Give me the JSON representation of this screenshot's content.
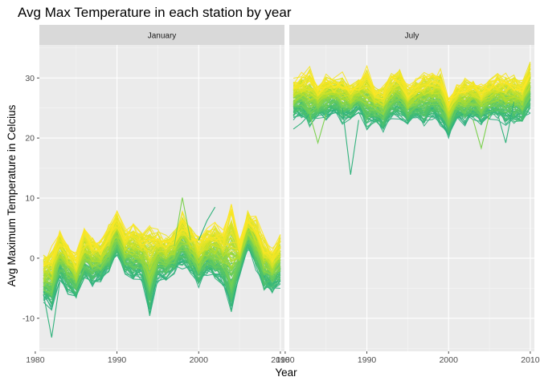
{
  "chart_data": {
    "type": "line",
    "title": "Avg Max Temperature in each station by year",
    "xlabel": "Year",
    "ylabel": "Avg Maximum Temperature in Celcius",
    "xlim": [
      1980.5,
      2010.5
    ],
    "ylim": [
      -15.5,
      35.5
    ],
    "x_ticks": [
      1980,
      1990,
      2000,
      2010
    ],
    "y_ticks": [
      -10,
      0,
      10,
      20,
      30
    ],
    "grid": true,
    "legend": "none",
    "color_palette": [
      "#1f9e89",
      "#35b779",
      "#6ece58",
      "#b5de2b",
      "#fde725"
    ],
    "panels": [
      {
        "strip": "January",
        "x": [
          1981,
          1982,
          1983,
          1984,
          1985,
          1986,
          1987,
          1988,
          1989,
          1990,
          1991,
          1992,
          1993,
          1994,
          1995,
          1996,
          1997,
          1998,
          1999,
          2000,
          2001,
          2002,
          2003,
          2004,
          2005,
          2006,
          2007,
          2008,
          2009,
          2010
        ],
        "band_low": [
          -8,
          -9,
          -4,
          -6,
          -7,
          -4,
          -5,
          -4,
          -3,
          0,
          -3,
          -4,
          -4,
          -10,
          -4,
          -4,
          -3,
          -2,
          -3,
          -5,
          -3,
          -4,
          -5,
          -10,
          -3,
          1,
          -2,
          -6,
          -6,
          -5
        ],
        "band_high": [
          1,
          2,
          5,
          3,
          1,
          5,
          4,
          3,
          6,
          8,
          5,
          6,
          5,
          6,
          5,
          4,
          5,
          8,
          6,
          4,
          5,
          6,
          5,
          9,
          3,
          8,
          7,
          4,
          2,
          4
        ],
        "outliers": [
          {
            "x": [
              1981,
              1982,
              1983
            ],
            "y": [
              -6,
              -13.2,
              -4
            ]
          },
          {
            "x": [
              1997,
              1998,
              1999
            ],
            "y": [
              2,
              10.1,
              3
            ]
          },
          {
            "x": [
              2000,
              2001,
              2002
            ],
            "y": [
              3,
              6.2,
              8.5
            ]
          }
        ]
      },
      {
        "strip": "July",
        "x": [
          1981,
          1982,
          1983,
          1984,
          1985,
          1986,
          1987,
          1988,
          1989,
          1990,
          1991,
          1992,
          1993,
          1994,
          1995,
          1996,
          1997,
          1998,
          1999,
          2000,
          2001,
          2002,
          2003,
          2004,
          2005,
          2006,
          2007,
          2008,
          2009,
          2010
        ],
        "band_low": [
          23,
          23,
          21,
          23,
          23,
          24,
          22,
          23,
          24,
          21,
          22,
          21,
          23,
          23,
          22,
          23,
          22,
          23,
          22,
          20,
          23,
          22,
          23,
          22,
          23,
          23,
          22,
          22,
          22,
          24
        ],
        "band_high": [
          30,
          31,
          32,
          29,
          31,
          30,
          31,
          29,
          30,
          32,
          29,
          29,
          31,
          32,
          29,
          30,
          31,
          31,
          32,
          27,
          29,
          30,
          30,
          29,
          30,
          31,
          31,
          31,
          30,
          33
        ],
        "outliers": [
          {
            "x": [
              1981,
              1982,
              1983
            ],
            "y": [
              21.5,
              22.5,
              24
            ]
          },
          {
            "x": [
              1983,
              1984,
              1985
            ],
            "y": [
              24,
              19.2,
              24
            ]
          },
          {
            "x": [
              1987,
              1988,
              1989
            ],
            "y": [
              25,
              13.9,
              23
            ]
          },
          {
            "x": [
              2003,
              2004,
              2005
            ],
            "y": [
              23,
              18.3,
              24
            ]
          },
          {
            "x": [
              2006,
              2007,
              2008
            ],
            "y": [
              24,
              19.2,
              26
            ]
          }
        ]
      }
    ]
  }
}
